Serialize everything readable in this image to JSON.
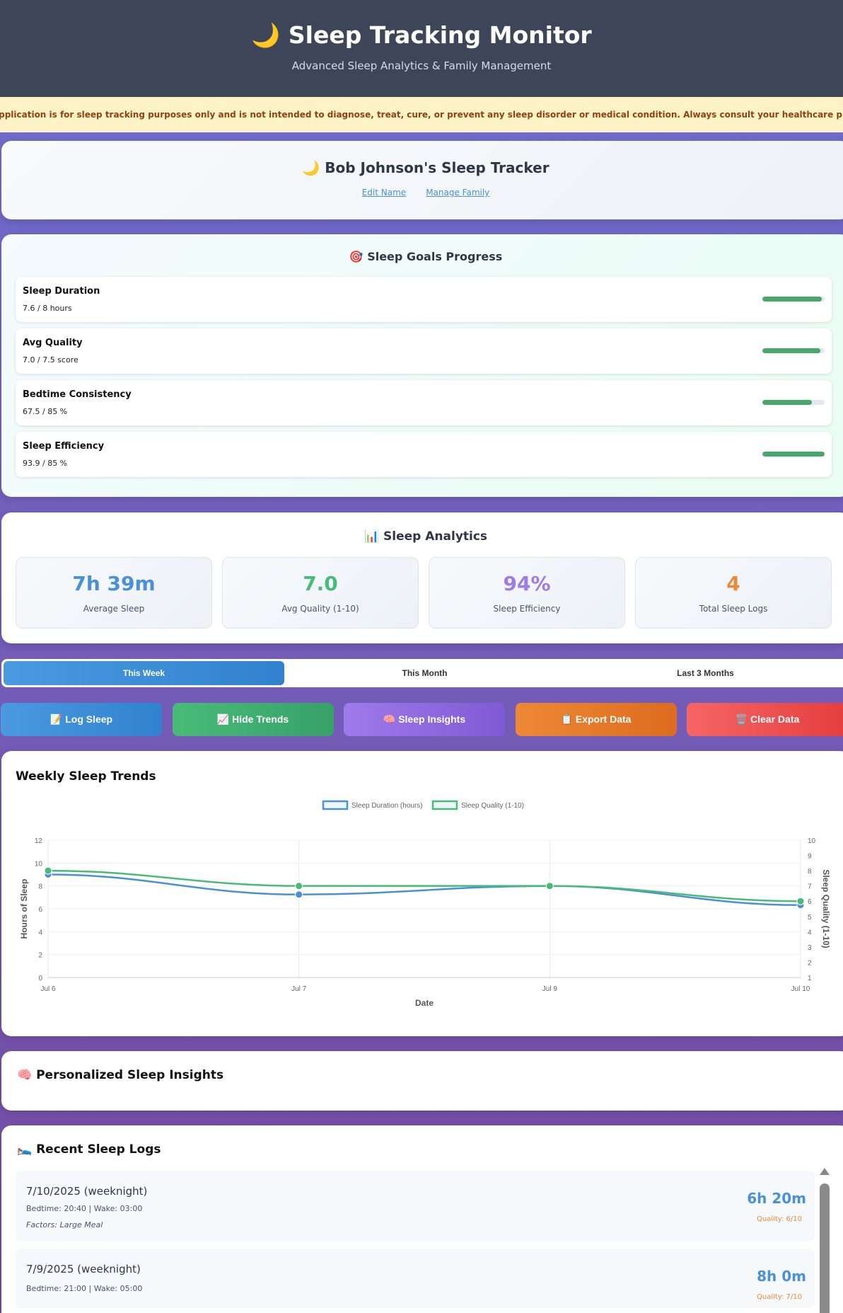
{
  "header": {
    "title": "🌙 Sleep Tracking Monitor",
    "subtitle": "Advanced Sleep Analytics & Family Management"
  },
  "disclaimer": "application is for sleep tracking purposes only and is not intended to diagnose, treat, cure, or prevent any sleep disorder or medical condition. Always consult your healthcare provider for medical advice, diagnosis, or treatment.",
  "profile": {
    "title": "🌙 Bob Johnson's Sleep Tracker",
    "edit_name": "Edit Name",
    "manage_family": "Manage Family"
  },
  "goals": {
    "title": "🎯 Sleep Goals Progress",
    "items": [
      {
        "label": "Sleep Duration",
        "value": "7.6 / 8 hours",
        "progress": 95
      },
      {
        "label": "Avg Quality",
        "value": "7.0 / 7.5 score",
        "progress": 93
      },
      {
        "label": "Bedtime Consistency",
        "value": "67.5 / 85 %",
        "progress": 79
      },
      {
        "label": "Sleep Efficiency",
        "value": "93.9 / 85 %",
        "progress": 100
      }
    ],
    "bar_color": "#48a86b"
  },
  "analytics": {
    "title": "📊 Sleep Analytics",
    "stats": [
      {
        "value": "7h 39m",
        "label": "Average Sleep",
        "color": "#4a90d9"
      },
      {
        "value": "7.0",
        "label": "Avg Quality (1-10)",
        "color": "#48bb78"
      },
      {
        "value": "94%",
        "label": "Sleep Efficiency",
        "color": "#9f7aea"
      },
      {
        "value": "4",
        "label": "Total Sleep Logs",
        "color": "#ed8936"
      }
    ]
  },
  "tabs": [
    "This Week",
    "This Month",
    "Last 3 Months"
  ],
  "actions": [
    {
      "label": "📝 Log Sleep",
      "color": "linear-gradient(90deg,#4a9ae0,#3182ce)"
    },
    {
      "label": "📈 Hide Trends",
      "color": "linear-gradient(90deg,#48bb78,#38a169)"
    },
    {
      "label": "🧠 Sleep Insights",
      "color": "linear-gradient(90deg,#9f7aea,#805ad5)"
    },
    {
      "label": "📋 Export Data",
      "color": "linear-gradient(90deg,#ed8936,#dd6b20)"
    },
    {
      "label": "🗑️ Clear Data",
      "color": "linear-gradient(90deg,#f56565,#e53e3e)"
    }
  ],
  "chart": {
    "title": "Weekly Sleep Trends"
  },
  "chart_data": {
    "type": "line",
    "categories": [
      "Jul 6",
      "Jul 7",
      "Jul 9",
      "Jul 10"
    ],
    "xlabel": "Date",
    "ylabel": "Hours of Sleep",
    "y2label": "Sleep Quality (1-10)",
    "ylim": [
      0,
      12
    ],
    "yticks": [
      0,
      2,
      4,
      6,
      8,
      10,
      12
    ],
    "y2lim": [
      1,
      10
    ],
    "y2ticks": [
      1,
      2,
      3,
      4,
      5,
      6,
      7,
      8,
      9,
      10
    ],
    "grid": true,
    "legend": "top",
    "series": [
      {
        "name": "Sleep Duration (hours)",
        "axis": "left",
        "color": "#4a90d9",
        "values": [
          9.0,
          7.25,
          8.0,
          6.33
        ]
      },
      {
        "name": "Sleep Quality (1-10)",
        "axis": "right",
        "color": "#48bb78",
        "values": [
          8,
          7,
          7,
          6
        ]
      }
    ]
  },
  "insights": {
    "title": "🧠 Personalized Sleep Insights"
  },
  "logs": {
    "title": "🛌 Recent Sleep Logs",
    "items": [
      {
        "date": "7/10/2025 (weeknight)",
        "times": "Bedtime: 20:40 | Wake: 03:00",
        "factors": "Factors: Large Meal",
        "duration": "6h 20m",
        "quality": "Quality: 6/10"
      },
      {
        "date": "7/9/2025 (weeknight)",
        "times": "Bedtime: 21:00 | Wake: 05:00",
        "duration": "8h 0m",
        "quality": "Quality: 7/10"
      }
    ]
  }
}
